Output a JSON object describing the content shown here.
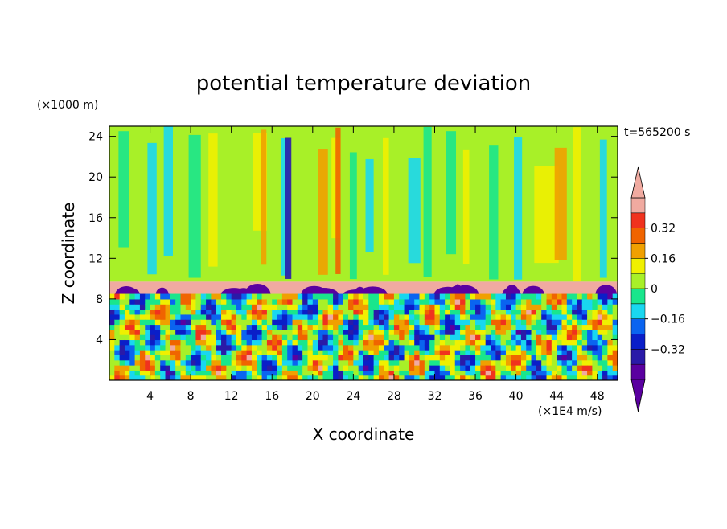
{
  "chart_data": {
    "type": "heatmap",
    "title": "potential temperature deviation",
    "xlabel": "X coordinate",
    "ylabel": "Z coordinate",
    "x_unit_label": "(×1E4 m/s)",
    "y_unit_label": "(×1000 m)",
    "time_label": "t=565200 s",
    "xlim": [
      0,
      50
    ],
    "ylim": [
      0,
      25
    ],
    "x_ticks": [
      4,
      8,
      12,
      16,
      20,
      24,
      28,
      32,
      36,
      40,
      44,
      48
    ],
    "x_tick_labels": [
      "4",
      "8",
      "12",
      "16",
      "20",
      "24",
      "28",
      "32",
      "36",
      "40",
      "44",
      "48"
    ],
    "y_ticks": [
      4,
      8,
      12,
      16,
      20,
      24
    ],
    "y_tick_labels": [
      "4",
      "8",
      "12",
      "16",
      "20",
      "24"
    ],
    "colorbar": {
      "levels": [
        -0.48,
        -0.4,
        -0.32,
        -0.24,
        -0.16,
        -0.08,
        0,
        0.08,
        0.16,
        0.24,
        0.32,
        0.4
      ],
      "colors": [
        "#5a00a0",
        "#2a1aa8",
        "#0a1ec8",
        "#0a64f0",
        "#19d7f0",
        "#19e68c",
        "#a8f028",
        "#f0f000",
        "#f0a000",
        "#f06400",
        "#f0321e",
        "#f0aaa0"
      ],
      "under_color": "#5a00a0",
      "over_color": "#f0aaa0",
      "tick_values": [
        0.32,
        0.16,
        0,
        -0.16,
        -0.32
      ],
      "tick_labels": [
        "0.32",
        "0.16",
        "0",
        "−0.16",
        "−0.32"
      ]
    },
    "field_description_levels": {
      "upper_layer_z_range": [
        9.7,
        25
      ],
      "inversion_layer_z_range": [
        8.2,
        9.7
      ],
      "turbulent_layer_z_range": [
        0,
        8.2
      ]
    }
  }
}
